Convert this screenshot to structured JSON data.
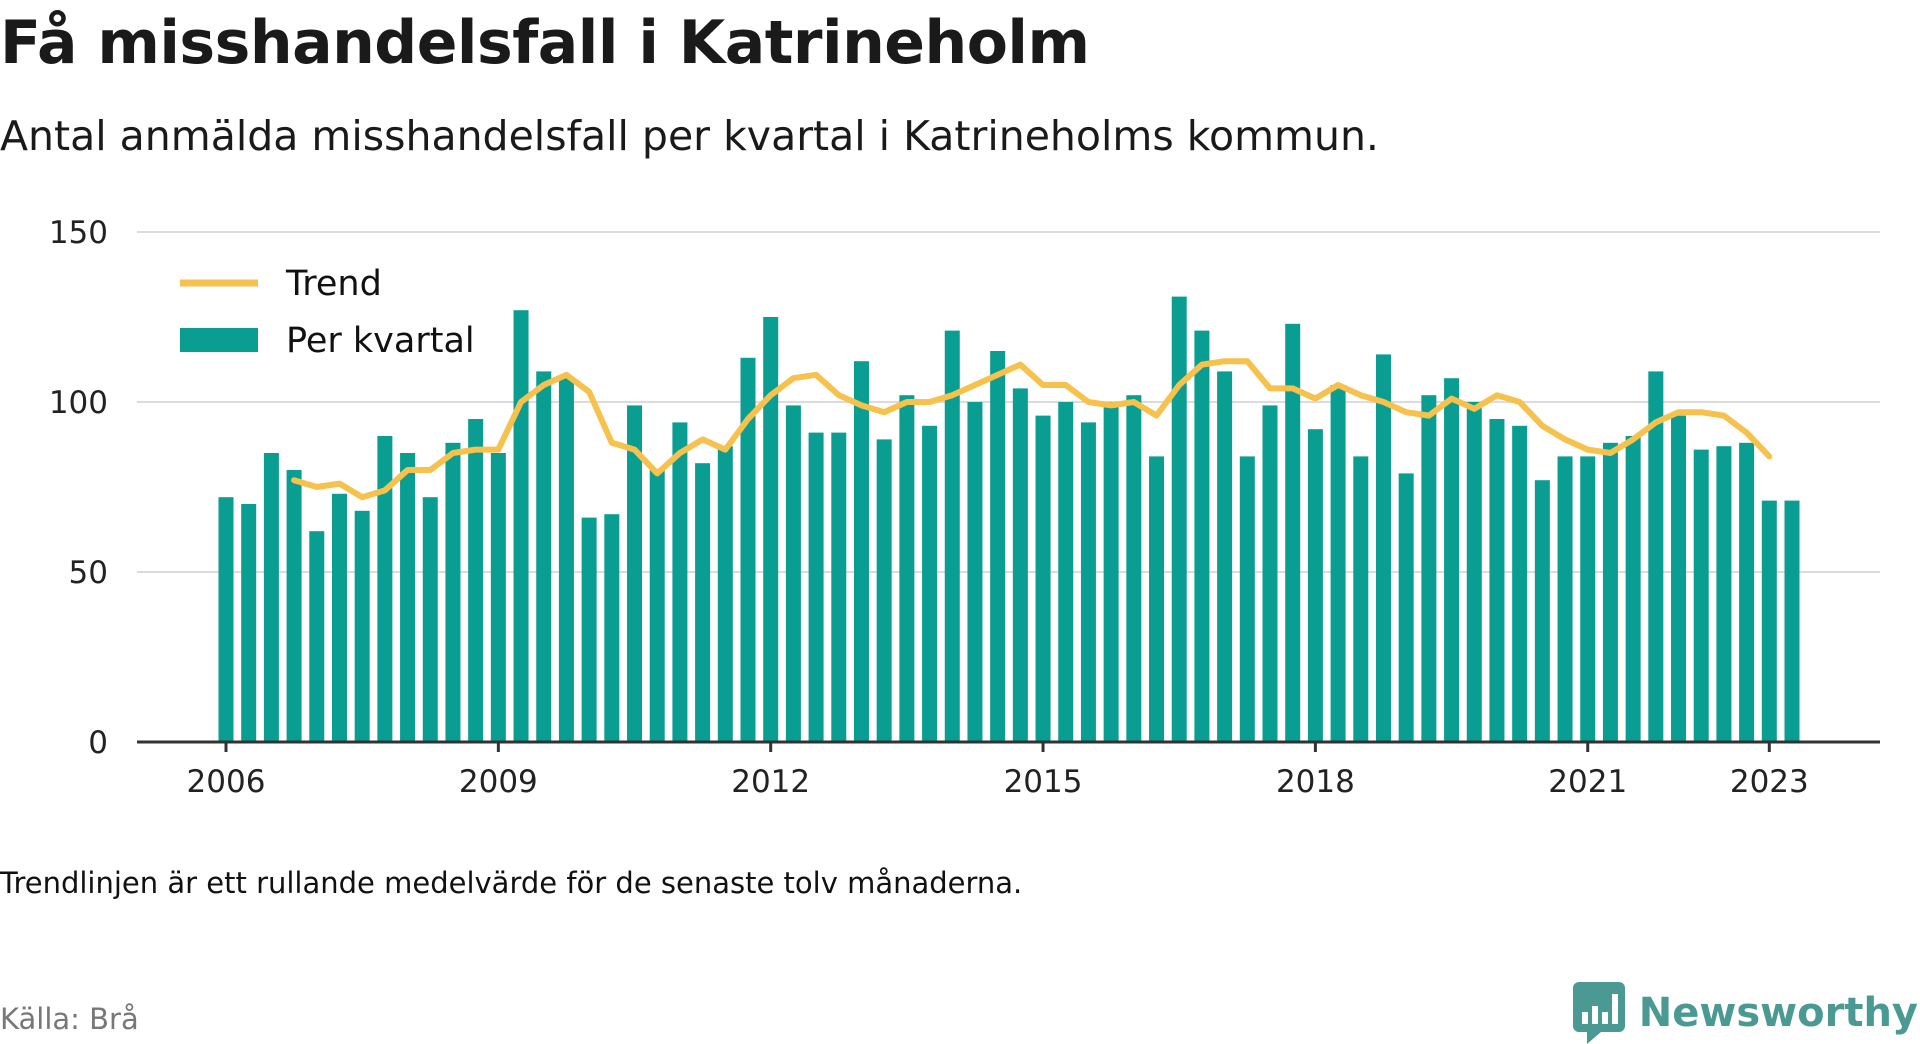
{
  "header": {
    "title": "Få misshandelsfall i Katrineholm",
    "subtitle": "Antal anmälda misshandelsfall per kvartal i Katrineholms kommun."
  },
  "footer": {
    "note": "Trendlinjen är ett rullande medelvärde för de senaste tolv månaderna.",
    "source": "Källa: Brå",
    "brand": "Newsworthy"
  },
  "colors": {
    "bar": "#0a9e93",
    "trend": "#f6c14d",
    "grid": "#dcdcdc",
    "axis": "#333333",
    "brand": "#4a9993"
  },
  "icons": {
    "logo": "newsworthy-logo-icon"
  },
  "chart_data": {
    "type": "bar",
    "title": "Få misshandelsfall i Katrineholm",
    "subtitle": "Antal anmälda misshandelsfall per kvartal i Katrineholms kommun.",
    "xlabel": "",
    "ylabel": "",
    "ylim": [
      0,
      150
    ],
    "yticks": [
      0,
      50,
      100,
      150
    ],
    "xticks": [
      "2006",
      "2009",
      "2012",
      "2015",
      "2018",
      "2021",
      "2023"
    ],
    "grid": true,
    "legend": {
      "position": "top-left",
      "entries": [
        "Trend",
        "Per kvartal"
      ]
    },
    "quarters": [
      "2006-Q1",
      "2006-Q2",
      "2006-Q3",
      "2006-Q4",
      "2007-Q1",
      "2007-Q2",
      "2007-Q3",
      "2007-Q4",
      "2008-Q1",
      "2008-Q2",
      "2008-Q3",
      "2008-Q4",
      "2009-Q1",
      "2009-Q2",
      "2009-Q3",
      "2009-Q4",
      "2010-Q1",
      "2010-Q2",
      "2010-Q3",
      "2010-Q4",
      "2011-Q1",
      "2011-Q2",
      "2011-Q3",
      "2011-Q4",
      "2012-Q1",
      "2012-Q2",
      "2012-Q3",
      "2012-Q4",
      "2013-Q1",
      "2013-Q2",
      "2013-Q3",
      "2013-Q4",
      "2014-Q1",
      "2014-Q2",
      "2014-Q3",
      "2014-Q4",
      "2015-Q1",
      "2015-Q2",
      "2015-Q3",
      "2015-Q4",
      "2016-Q1",
      "2016-Q2",
      "2016-Q3",
      "2016-Q4",
      "2017-Q1",
      "2017-Q2",
      "2017-Q3",
      "2017-Q4",
      "2018-Q1",
      "2018-Q2",
      "2018-Q3",
      "2018-Q4",
      "2019-Q1",
      "2019-Q2",
      "2019-Q3",
      "2019-Q4",
      "2020-Q1",
      "2020-Q2",
      "2020-Q3",
      "2020-Q4",
      "2021-Q1",
      "2021-Q2",
      "2021-Q3",
      "2021-Q4",
      "2022-Q1",
      "2022-Q2",
      "2022-Q3",
      "2022-Q4",
      "2023-Q1",
      "2023-Q2"
    ],
    "series": [
      {
        "name": "Per kvartal",
        "values": [
          72,
          70,
          85,
          80,
          62,
          73,
          68,
          90,
          85,
          72,
          88,
          95,
          85,
          127,
          109,
          107,
          66,
          67,
          99,
          80,
          94,
          82,
          87,
          113,
          125,
          99,
          91,
          91,
          112,
          89,
          102,
          93,
          121,
          100,
          115,
          104,
          96,
          100,
          94,
          100,
          102,
          84,
          131,
          121,
          109,
          84,
          99,
          123,
          92,
          105,
          84,
          114,
          79,
          102,
          107,
          100,
          95,
          93,
          77,
          84,
          84,
          88,
          90,
          109,
          96,
          86,
          87,
          88,
          71,
          71
        ]
      },
      {
        "name": "Trend",
        "values": [
          null,
          null,
          null,
          77,
          75,
          76,
          72,
          74,
          80,
          80,
          85,
          86,
          86,
          100,
          105,
          108,
          103,
          88,
          86,
          79,
          85,
          89,
          86,
          95,
          102,
          107,
          108,
          102,
          99,
          97,
          100,
          100,
          102,
          105,
          108,
          111,
          105,
          105,
          100,
          99,
          100,
          96,
          105,
          111,
          112,
          112,
          104,
          104,
          101,
          105,
          102,
          100,
          97,
          96,
          101,
          98,
          102,
          100,
          93,
          89,
          86,
          85,
          89,
          94,
          97,
          97,
          96,
          91,
          84,
          null
        ]
      }
    ]
  }
}
